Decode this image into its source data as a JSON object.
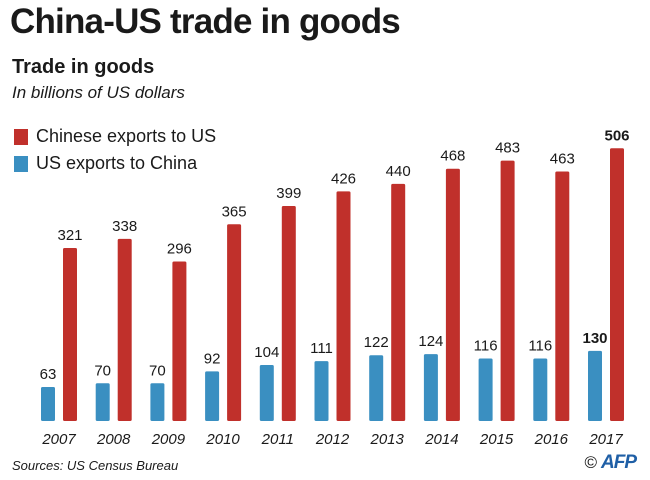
{
  "header": {
    "headline": "China-US trade in goods",
    "subtitle": "Trade in goods",
    "units": "In billions of US dollars"
  },
  "colors": {
    "chinese_exports": "#c0302b",
    "us_exports": "#3a8fc1"
  },
  "footer": {
    "source": "Sources: US Census Bureau",
    "copyright": "©",
    "logo_text": "AFP"
  },
  "chart_data": {
    "type": "bar",
    "categories": [
      "2007",
      "2008",
      "2009",
      "2010",
      "2011",
      "2012",
      "2013",
      "2014",
      "2015",
      "2016",
      "2017"
    ],
    "series": [
      {
        "name": "Chinese exports to US",
        "color": "#c0302b",
        "values": [
          321,
          338,
          296,
          365,
          399,
          426,
          440,
          468,
          483,
          463,
          506
        ]
      },
      {
        "name": "US exports to China",
        "color": "#3a8fc1",
        "values": [
          63,
          70,
          70,
          92,
          104,
          111,
          122,
          124,
          116,
          116,
          130
        ]
      }
    ],
    "highlighted_category": "2017",
    "title": "Trade in goods",
    "xlabel": "",
    "ylabel": "",
    "legend": "top-left",
    "grid": false
  }
}
